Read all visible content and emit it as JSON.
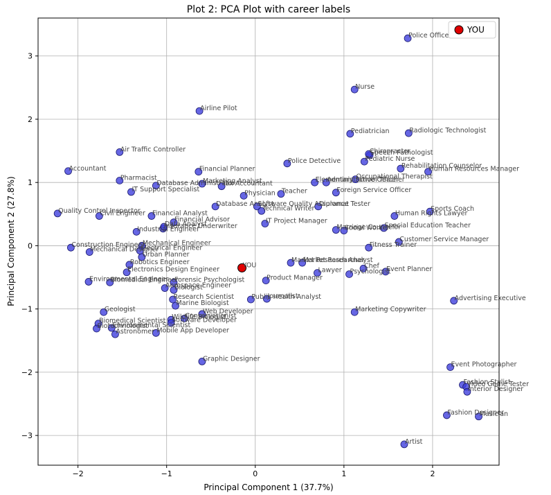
{
  "chart_data": {
    "type": "scatter",
    "title": "Plot 2: PCA Plot with career labels",
    "xlabel": "Principal Component 1 (37.7%)",
    "ylabel": "Principal Component 2 (27.8%)",
    "xlim": [
      -2.45,
      2.75
    ],
    "ylim": [
      -3.47,
      3.6
    ],
    "xticks": [
      -2,
      -1,
      0,
      1,
      2
    ],
    "yticks": [
      -3,
      -2,
      -1,
      0,
      1,
      2,
      3
    ],
    "grid": true,
    "legend_position": "top-right",
    "colors": {
      "points": "#3b3bdc",
      "points_edge": "#1a1a6e",
      "you": "#e00000"
    },
    "you": {
      "label": "YOU",
      "x": -0.15,
      "y": -0.35
    },
    "legend": [
      {
        "label": "YOU"
      }
    ],
    "series": [
      {
        "name": "careers",
        "points": [
          {
            "label": "Police Officer",
            "x": 1.72,
            "y": 3.28
          },
          {
            "label": "Nurse",
            "x": 1.12,
            "y": 2.47
          },
          {
            "label": "Airline Pilot",
            "x": -0.63,
            "y": 2.13
          },
          {
            "label": "Pediatrician",
            "x": 1.07,
            "y": 1.77
          },
          {
            "label": "Radiologic Technologist",
            "x": 1.73,
            "y": 1.78
          },
          {
            "label": "Speech Pathologist",
            "x": 1.29,
            "y": 1.43
          },
          {
            "label": "Chiropractor",
            "x": 1.28,
            "y": 1.45
          },
          {
            "label": "Pediatric Nurse",
            "x": 1.23,
            "y": 1.33
          },
          {
            "label": "Air Traffic Controller",
            "x": -1.53,
            "y": 1.48
          },
          {
            "label": "Police Detective",
            "x": 0.36,
            "y": 1.3
          },
          {
            "label": "Rehabilitation Counselor",
            "x": 1.64,
            "y": 1.22
          },
          {
            "label": "Human Resources Manager",
            "x": 1.95,
            "y": 1.17
          },
          {
            "label": "Accountant",
            "x": -2.11,
            "y": 1.18
          },
          {
            "label": "Financial Planner",
            "x": -0.64,
            "y": 1.17
          },
          {
            "label": "Occupational Therapist",
            "x": 1.13,
            "y": 1.05
          },
          {
            "label": "Elementary School Teacher",
            "x": 0.67,
            "y": 1.0
          },
          {
            "label": "Pharmacist",
            "x": -1.53,
            "y": 1.03
          },
          {
            "label": "Database Administrator",
            "x": -1.12,
            "y": 0.95
          },
          {
            "label": "Marketing Analyst",
            "x": -0.6,
            "y": 0.98
          },
          {
            "label": "Tax Accountant",
            "x": -0.38,
            "y": 0.94
          },
          {
            "label": "Administrative Officer",
            "x": 0.8,
            "y": 1.0
          },
          {
            "label": "Foreign Service Officer",
            "x": 0.91,
            "y": 0.84
          },
          {
            "label": "IT Support Specialist",
            "x": -1.4,
            "y": 0.85
          },
          {
            "label": "Teacher",
            "x": 0.29,
            "y": 0.82
          },
          {
            "label": "Physician",
            "x": -0.13,
            "y": 0.79
          },
          {
            "label": "Diplomat",
            "x": 0.71,
            "y": 0.62
          },
          {
            "label": "Database Analyst",
            "x": -0.45,
            "y": 0.62
          },
          {
            "label": "Software Quality Assurance Tester",
            "x": 0.02,
            "y": 0.62
          },
          {
            "label": "Technical Writer",
            "x": 0.07,
            "y": 0.55
          },
          {
            "label": "Quality Control Inspector",
            "x": -2.23,
            "y": 0.51
          },
          {
            "label": "Civil Engineer",
            "x": -1.76,
            "y": 0.47
          },
          {
            "label": "Financial Analyst",
            "x": -1.17,
            "y": 0.47
          },
          {
            "label": "Human Rights Lawyer",
            "x": 1.57,
            "y": 0.47
          },
          {
            "label": "Sports Coach",
            "x": 1.97,
            "y": 0.54
          },
          {
            "label": "Financial Advisor",
            "x": -0.92,
            "y": 0.37
          },
          {
            "label": "IT Project Manager",
            "x": 0.11,
            "y": 0.35
          },
          {
            "label": "Insurance Underwriter",
            "x": -1.04,
            "y": 0.27
          },
          {
            "label": "Data Analyst",
            "x": -1.03,
            "y": 0.3
          },
          {
            "label": "Marriage Counselor",
            "x": 0.91,
            "y": 0.25
          },
          {
            "label": "Industrial Engineer",
            "x": -1.34,
            "y": 0.22
          },
          {
            "label": "Social Worker",
            "x": 1.0,
            "y": 0.24
          },
          {
            "label": "Special Education Teacher",
            "x": 1.45,
            "y": 0.28
          },
          {
            "label": "Mechanical Engineer",
            "x": -1.28,
            "y": 0.0
          },
          {
            "label": "Construction Engineer",
            "x": -2.08,
            "y": -0.03
          },
          {
            "label": "Electrical Engineer",
            "x": -1.3,
            "y": -0.08
          },
          {
            "label": "Mechanical Designer",
            "x": -1.87,
            "y": -0.1
          },
          {
            "label": "Customer Service Manager",
            "x": 1.62,
            "y": 0.06
          },
          {
            "label": "Fitness Trainer",
            "x": 1.28,
            "y": -0.03
          },
          {
            "label": "Urban Planner",
            "x": -1.28,
            "y": -0.18
          },
          {
            "label": "Market Research Analyst",
            "x": 0.4,
            "y": -0.27
          },
          {
            "label": "Market Researcher",
            "x": 0.53,
            "y": -0.27
          },
          {
            "label": "Lawyer",
            "x": 0.7,
            "y": -0.43
          },
          {
            "label": "Chef",
            "x": 1.22,
            "y": -0.36
          },
          {
            "label": "Psychologist",
            "x": 1.06,
            "y": -0.45
          },
          {
            "label": "Event Planner",
            "x": 1.47,
            "y": -0.41
          },
          {
            "label": "Robotics Engineer",
            "x": -1.42,
            "y": -0.3
          },
          {
            "label": "Product Manager",
            "x": 0.12,
            "y": -0.55
          },
          {
            "label": "Electronics Design Engineer",
            "x": -1.45,
            "y": -0.42
          },
          {
            "label": "Biomedical Engineer",
            "x": -1.64,
            "y": -0.58
          },
          {
            "label": "Environmental Engineer",
            "x": -1.88,
            "y": -0.57
          },
          {
            "label": "Forensic Psychologist",
            "x": -0.92,
            "y": -0.58
          },
          {
            "label": "Aerospace Engineer",
            "x": -1.02,
            "y": -0.67
          },
          {
            "label": "Biologist",
            "x": -0.92,
            "y": -0.7
          },
          {
            "label": "Research Scientist",
            "x": -0.93,
            "y": -0.85
          },
          {
            "label": "Public Health Analyst",
            "x": -0.05,
            "y": -0.85
          },
          {
            "label": "Journalist",
            "x": 0.13,
            "y": -0.84
          },
          {
            "label": "Marine Biologist",
            "x": -0.9,
            "y": -0.95
          },
          {
            "label": "Advertising Executive",
            "x": 2.24,
            "y": -0.87
          },
          {
            "label": "Geologist",
            "x": -1.71,
            "y": -1.05
          },
          {
            "label": "Web Developer",
            "x": -0.6,
            "y": -1.08
          },
          {
            "label": "Marketing Copywriter",
            "x": 1.12,
            "y": -1.05
          },
          {
            "label": "Wildlife Biologist",
            "x": -0.95,
            "y": -1.17
          },
          {
            "label": "Conservationist",
            "x": -0.8,
            "y": -1.15
          },
          {
            "label": "Biomedical Scientist",
            "x": -1.77,
            "y": -1.23
          },
          {
            "label": "Software Developer",
            "x": -0.95,
            "y": -1.22
          },
          {
            "label": "Biotechnologist",
            "x": -1.79,
            "y": -1.31
          },
          {
            "label": "Environmental Scientist",
            "x": -1.62,
            "y": -1.3
          },
          {
            "label": "Mobile App Developer",
            "x": -1.12,
            "y": -1.38
          },
          {
            "label": "Astronomer",
            "x": -1.58,
            "y": -1.4
          },
          {
            "label": "Graphic Designer",
            "x": -0.6,
            "y": -1.83
          },
          {
            "label": "Event Photographer",
            "x": 2.2,
            "y": -1.92
          },
          {
            "label": "Fashion Stylist",
            "x": 2.34,
            "y": -2.2
          },
          {
            "label": "Video Game Tester",
            "x": 2.38,
            "y": -2.23
          },
          {
            "label": "Interior Designer",
            "x": 2.39,
            "y": -2.31
          },
          {
            "label": "Fashion Designer",
            "x": 2.16,
            "y": -2.68
          },
          {
            "label": "Musician",
            "x": 2.52,
            "y": -2.7
          },
          {
            "label": "Artist",
            "x": 1.68,
            "y": -3.14
          }
        ]
      }
    ]
  }
}
